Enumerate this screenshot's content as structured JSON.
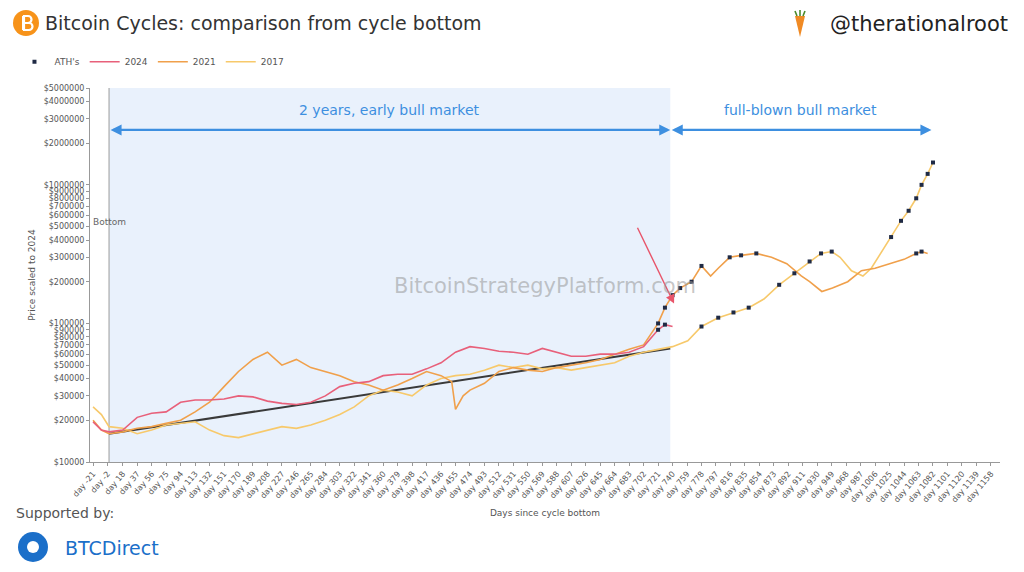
{
  "chart_data": {
    "type": "line",
    "title": "Bitcoin Cycles: comparison from cycle bottom",
    "source": "@therationalroot",
    "xlabel": "Days since cycle bottom",
    "ylabel": "Price scaled to 2024",
    "log": "y",
    "grid": false,
    "legend": "top left",
    "xlim": [
      -25,
      1170
    ],
    "xticks": [
      {
        "value": -21,
        "label": "day -21"
      },
      {
        "value": -2,
        "label": "day -2"
      },
      {
        "value": 18,
        "label": "day 18"
      },
      {
        "value": 37,
        "label": "day 37"
      },
      {
        "value": 56,
        "label": "day 56"
      },
      {
        "value": 75,
        "label": "day 75"
      },
      {
        "value": 94,
        "label": "day 94"
      },
      {
        "value": 113,
        "label": "day 113"
      },
      {
        "value": 132,
        "label": "day 132"
      },
      {
        "value": 151,
        "label": "day 151"
      },
      {
        "value": 170,
        "label": "day 170"
      },
      {
        "value": 189,
        "label": "day 189"
      },
      {
        "value": 208,
        "label": "day 208"
      },
      {
        "value": 227,
        "label": "day 227"
      },
      {
        "value": 246,
        "label": "day 246"
      },
      {
        "value": 265,
        "label": "day 265"
      },
      {
        "value": 284,
        "label": "day 284"
      },
      {
        "value": 303,
        "label": "day 303"
      },
      {
        "value": 322,
        "label": "day 322"
      },
      {
        "value": 341,
        "label": "day 341"
      },
      {
        "value": 360,
        "label": "day 360"
      },
      {
        "value": 379,
        "label": "day 379"
      },
      {
        "value": 398,
        "label": "day 398"
      },
      {
        "value": 417,
        "label": "day 417"
      },
      {
        "value": 436,
        "label": "day 436"
      },
      {
        "value": 455,
        "label": "day 455"
      },
      {
        "value": 474,
        "label": "day 474"
      },
      {
        "value": 493,
        "label": "day 493"
      },
      {
        "value": 512,
        "label": "day 512"
      },
      {
        "value": 531,
        "label": "day 531"
      },
      {
        "value": 550,
        "label": "day 550"
      },
      {
        "value": 569,
        "label": "day 569"
      },
      {
        "value": 588,
        "label": "day 588"
      },
      {
        "value": 607,
        "label": "day 607"
      },
      {
        "value": 626,
        "label": "day 626"
      },
      {
        "value": 645,
        "label": "day 645"
      },
      {
        "value": 664,
        "label": "day 664"
      },
      {
        "value": 683,
        "label": "day 683"
      },
      {
        "value": 702,
        "label": "day 702"
      },
      {
        "value": 721,
        "label": "day 721"
      },
      {
        "value": 740,
        "label": "day 740"
      },
      {
        "value": 759,
        "label": "day 759"
      },
      {
        "value": 778,
        "label": "day 778"
      },
      {
        "value": 797,
        "label": "day 797"
      },
      {
        "value": 816,
        "label": "day 816"
      },
      {
        "value": 835,
        "label": "day 835"
      },
      {
        "value": 854,
        "label": "day 854"
      },
      {
        "value": 873,
        "label": "day 873"
      },
      {
        "value": 892,
        "label": "day 892"
      },
      {
        "value": 911,
        "label": "day 911"
      },
      {
        "value": 930,
        "label": "day 930"
      },
      {
        "value": 949,
        "label": "day 949"
      },
      {
        "value": 968,
        "label": "day 968"
      },
      {
        "value": 987,
        "label": "day 987"
      },
      {
        "value": 1006,
        "label": "day 1006"
      },
      {
        "value": 1025,
        "label": "day 1025"
      },
      {
        "value": 1044,
        "label": "day 1044"
      },
      {
        "value": 1063,
        "label": "day 1063"
      },
      {
        "value": 1082,
        "label": "day 1082"
      },
      {
        "value": 1101,
        "label": "day 1101"
      },
      {
        "value": 1120,
        "label": "day 1120"
      },
      {
        "value": 1139,
        "label": "day 1139"
      },
      {
        "value": 1158,
        "label": "day 1158"
      }
    ],
    "ylim": [
      10000,
      5000000
    ],
    "yticks": [
      {
        "value": 10000,
        "label": "$10000"
      },
      {
        "value": 20000,
        "label": "$20000"
      },
      {
        "value": 30000,
        "label": "$30000"
      },
      {
        "value": 40000,
        "label": "$40000"
      },
      {
        "value": 50000,
        "label": "$50000"
      },
      {
        "value": 60000,
        "label": "$60000"
      },
      {
        "value": 70000,
        "label": "$70000"
      },
      {
        "value": 80000,
        "label": "$80000"
      },
      {
        "value": 90000,
        "label": "$90000"
      },
      {
        "value": 100000,
        "label": "$100000"
      },
      {
        "value": 200000,
        "label": "$200000"
      },
      {
        "value": 300000,
        "label": "$300000"
      },
      {
        "value": 400000,
        "label": "$400000"
      },
      {
        "value": 500000,
        "label": "$500000"
      },
      {
        "value": 600000,
        "label": "$600000"
      },
      {
        "value": 700000,
        "label": "$700000"
      },
      {
        "value": 800000,
        "label": "$800000"
      },
      {
        "value": 900000,
        "label": "$900000"
      },
      {
        "value": 1000000,
        "label": "$1000000"
      },
      {
        "value": 2000000,
        "label": "$2000000"
      },
      {
        "value": 3000000,
        "label": "$3000000"
      },
      {
        "value": 4000000,
        "label": "$4000000"
      },
      {
        "value": 5000000,
        "label": "$5000000"
      }
    ],
    "series": [
      {
        "name": "ATH's",
        "type": "scatter",
        "marker": "square",
        "color": "#1f2a44",
        "x": [
          721,
          730,
          721,
          730,
          740,
          750,
          765,
          778,
          815,
          830,
          850,
          1060,
          1067,
          778,
          800,
          820,
          840,
          880,
          900,
          920,
          935,
          949,
          1027,
          1040,
          1050,
          1060,
          1067,
          1075,
          1082
        ],
        "values": [
          90000,
          98000,
          100000,
          130000,
          160000,
          180000,
          200000,
          260000,
          300000,
          310000,
          320000,
          320000,
          330000,
          95000,
          110000,
          120000,
          130000,
          190000,
          230000,
          280000,
          320000,
          330000,
          420000,
          550000,
          650000,
          800000,
          1000000,
          1200000,
          1450000
        ]
      },
      {
        "name": "2024",
        "color": "#e8607a",
        "line_style": "solid",
        "x": [
          -21,
          -10,
          0,
          18,
          37,
          56,
          75,
          94,
          113,
          132,
          151,
          170,
          189,
          208,
          227,
          246,
          265,
          284,
          303,
          322,
          341,
          360,
          379,
          398,
          417,
          436,
          455,
          474,
          493,
          512,
          531,
          550,
          569,
          588,
          607,
          626,
          645,
          664,
          683,
          702,
          721,
          730,
          740
        ],
        "values": [
          19500,
          17000,
          16500,
          17000,
          21000,
          22500,
          23000,
          27000,
          28000,
          28000,
          28500,
          30000,
          29500,
          27500,
          26500,
          26000,
          27000,
          30000,
          35000,
          37000,
          38000,
          42000,
          43000,
          43000,
          47000,
          52000,
          62000,
          68000,
          66000,
          63000,
          62000,
          60000,
          66000,
          62000,
          58000,
          58000,
          60000,
          60000,
          62000,
          68000,
          90000,
          98000,
          95000
        ]
      },
      {
        "name": "2021",
        "color": "#f0a04b",
        "line_style": "solid",
        "x": [
          -21,
          -10,
          0,
          18,
          37,
          56,
          75,
          94,
          113,
          132,
          151,
          170,
          189,
          208,
          227,
          246,
          265,
          284,
          303,
          322,
          341,
          360,
          379,
          398,
          417,
          436,
          450,
          455,
          465,
          474,
          493,
          512,
          531,
          550,
          569,
          588,
          607,
          626,
          645,
          664,
          683,
          702,
          712,
          721,
          730,
          740,
          750,
          765,
          778,
          790,
          800,
          815,
          830,
          850,
          870,
          890,
          909,
          920,
          936,
          950,
          970,
          988,
          1006,
          1025,
          1044,
          1060,
          1067,
          1075
        ],
        "values": [
          20000,
          17000,
          16000,
          16500,
          17500,
          18000,
          19000,
          20000,
          23000,
          27000,
          35000,
          45000,
          55000,
          62000,
          50000,
          55000,
          48000,
          45000,
          42000,
          38000,
          36000,
          33000,
          36000,
          40000,
          45000,
          42000,
          38000,
          24000,
          30000,
          33000,
          37000,
          45000,
          48000,
          46000,
          45000,
          48000,
          50000,
          52000,
          55000,
          60000,
          65000,
          70000,
          85000,
          100000,
          130000,
          160000,
          180000,
          200000,
          260000,
          220000,
          250000,
          300000,
          310000,
          320000,
          300000,
          270000,
          220000,
          200000,
          170000,
          180000,
          200000,
          240000,
          250000,
          270000,
          290000,
          320000,
          330000,
          320000
        ]
      },
      {
        "name": "2017",
        "color": "#f7c96b",
        "line_style": "solid",
        "x": [
          -21,
          -10,
          0,
          18,
          37,
          56,
          75,
          94,
          113,
          132,
          151,
          170,
          189,
          208,
          227,
          246,
          265,
          284,
          303,
          322,
          341,
          360,
          379,
          398,
          417,
          436,
          455,
          474,
          493,
          512,
          531,
          550,
          569,
          588,
          607,
          626,
          645,
          664,
          683,
          702,
          721,
          740,
          760,
          778,
          800,
          820,
          840,
          860,
          880,
          900,
          920,
          935,
          949,
          960,
          975,
          990,
          1001,
          1015,
          1027,
          1040,
          1050,
          1060,
          1067,
          1075,
          1082
        ],
        "values": [
          25000,
          22000,
          18000,
          17500,
          16000,
          17000,
          18500,
          19000,
          19500,
          17000,
          15500,
          15000,
          16000,
          17000,
          18000,
          17500,
          18500,
          20000,
          22000,
          25000,
          30000,
          33000,
          32000,
          30000,
          36000,
          40000,
          42000,
          43000,
          46000,
          50000,
          48000,
          50000,
          47000,
          48000,
          46000,
          48000,
          50000,
          52000,
          58000,
          62000,
          65000,
          68000,
          75000,
          95000,
          110000,
          120000,
          130000,
          150000,
          190000,
          230000,
          280000,
          320000,
          330000,
          300000,
          240000,
          220000,
          250000,
          330000,
          420000,
          550000,
          650000,
          800000,
          1000000,
          1200000,
          1450000
        ]
      },
      {
        "color": "#3a3a3a",
        "line_style": "solid",
        "x": [
          0,
          737
        ],
        "values": [
          16000,
          66000
        ]
      }
    ],
    "annotations": [
      {
        "text": "2 years, early bull market",
        "x0": 0,
        "x1": 737,
        "color": "#3d8fe0"
      },
      {
        "text": "full-blown bull market",
        "x0": 737,
        "x1": 1080,
        "color": "#3d8fe0"
      },
      {
        "text": "Bottom",
        "x": 0,
        "y": 540000
      },
      {
        "x": 742,
        "y": 139000,
        "ax": 693,
        "ay": 503000,
        "color": "#e8556a"
      }
    ],
    "watermark": "BitcoinStrategyPlatform.com",
    "sponsor_label": "Supported by:",
    "sponsor": "BTCDirect"
  }
}
